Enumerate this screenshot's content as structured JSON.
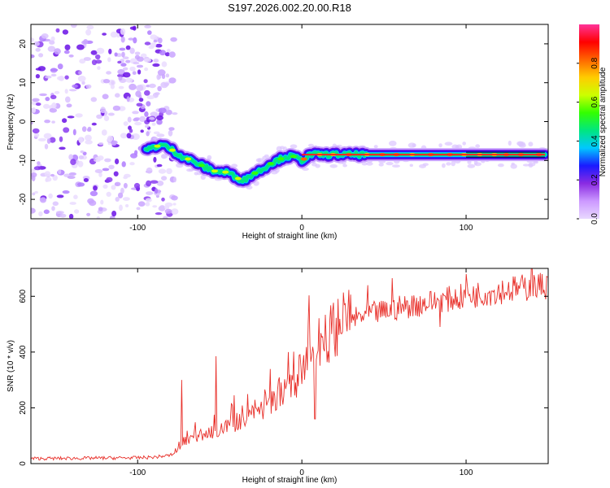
{
  "chart_data": [
    {
      "type": "heatmap",
      "title": "S197.2026.002.20.00.R18",
      "xlabel": "Height of straight line (km)",
      "ylabel": "Frequency (Hz)",
      "xlim": [
        -165,
        150
      ],
      "ylim": [
        -25,
        25
      ],
      "xticks": [
        -100,
        0,
        100
      ],
      "xtick_labels": [
        "-100",
        "0",
        "100"
      ],
      "yticks": [
        -20,
        -10,
        0,
        10,
        20
      ],
      "ytick_labels": [
        "-20",
        "-10",
        "0",
        "10",
        "20"
      ],
      "colorbar": {
        "label": "Normalized spectral amplitude",
        "range": [
          0,
          1
        ],
        "ticks": [
          0.0,
          0.2,
          0.4,
          0.6,
          0.8
        ],
        "tick_labels": [
          "0.0",
          "0.2",
          "0.4",
          "0.6",
          "0.8"
        ],
        "colors": [
          "#e8d8ff",
          "#cc99ff",
          "#8a2be2",
          "#1a1aff",
          "#00c8ff",
          "#00e680",
          "#33ff00",
          "#ccff00",
          "#ffcc00",
          "#ff6600",
          "#ff0000",
          "#ff3399"
        ]
      },
      "ridge": {
        "name": "Doppler frequency ridge",
        "x": [
          -95,
          -90,
          -85,
          -80,
          -75,
          -70,
          -65,
          -60,
          -55,
          -50,
          -45,
          -40,
          -35,
          -30,
          -25,
          -20,
          -15,
          -10,
          -5,
          0,
          5,
          10,
          20,
          40,
          60,
          80,
          100,
          120,
          140,
          148
        ],
        "y": [
          -7.5,
          -6.5,
          -6,
          -7,
          -8.5,
          -9.5,
          -10.5,
          -11.5,
          -12.5,
          -13,
          -13,
          -14.5,
          -15,
          -13.5,
          -12.5,
          -11,
          -10,
          -9,
          -9,
          -10,
          -8.5,
          -8.5,
          -8.5,
          -8.5,
          -8.5,
          -8.5,
          -8.5,
          -8.5,
          -8.5,
          -8.5
        ]
      },
      "noise_region": {
        "x_from": -165,
        "x_to": -83
      },
      "steady_line": {
        "x_from": 100,
        "x_to": 148,
        "y": -8.5
      }
    },
    {
      "type": "line",
      "xlabel": "Height of straight line (km)",
      "ylabel": "SNR (10 * v/v)",
      "xlim": [
        -165,
        150
      ],
      "ylim": [
        0,
        700
      ],
      "xticks": [
        -100,
        0,
        100
      ],
      "xtick_labels": [
        "-100",
        "0",
        "100"
      ],
      "yticks": [
        0,
        200,
        400,
        600
      ],
      "ytick_labels": [
        "0",
        "200",
        "400",
        "600"
      ],
      "series": [
        {
          "name": "SNR",
          "color": "#e8302a",
          "x": [
            -165,
            -140,
            -120,
            -100,
            -90,
            -80,
            -75,
            -70,
            -60,
            -50,
            -40,
            -30,
            -20,
            -10,
            -5,
            0,
            5,
            10,
            15,
            20,
            30,
            40,
            50,
            60,
            70,
            80,
            100,
            120,
            150
          ],
          "y": [
            18,
            19,
            20,
            21,
            23,
            30,
            55,
            85,
            105,
            118,
            145,
            180,
            215,
            255,
            290,
            330,
            380,
            420,
            450,
            490,
            515,
            535,
            545,
            560,
            570,
            580,
            600,
            620,
            640
          ],
          "spikes": [
            {
              "x": -73,
              "y": 300
            },
            {
              "x": -52,
              "y": 385
            },
            {
              "x": -41,
              "y": 245
            },
            {
              "x": -8,
              "y": 400
            },
            {
              "x": 4,
              "y": 500
            },
            {
              "x": 8,
              "y": 160
            },
            {
              "x": 40,
              "y": 640
            },
            {
              "x": 55,
              "y": 665
            },
            {
              "x": 84,
              "y": 490
            },
            {
              "x": 100,
              "y": 680
            },
            {
              "x": 140,
              "y": 700
            }
          ]
        }
      ]
    }
  ]
}
